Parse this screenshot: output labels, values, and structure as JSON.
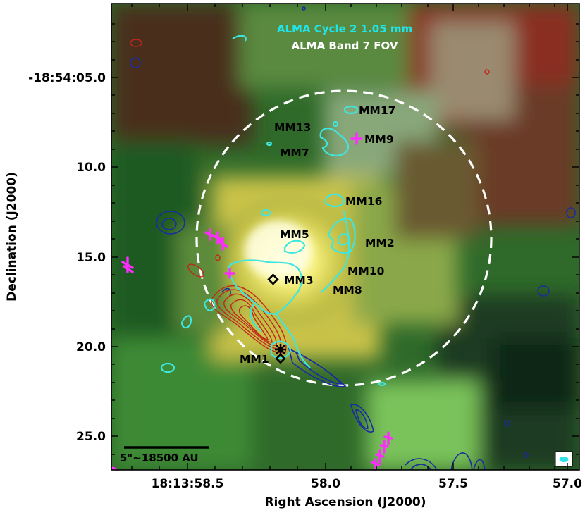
{
  "figure": {
    "legend_line_1": "ALMA Cycle 2 1.05 mm",
    "legend_line_1_color": "#22e3e8",
    "legend_line_2": "ALMA Band 7 FOV",
    "legend_line_2_color": "#ffffff",
    "scale_bar_label": "5\"~18500 AU",
    "x_axis_label": "Right Ascension (J2000)",
    "y_axis_label": "Declination (J2000)",
    "x_ticks": [
      "18:13:58.5",
      "58.0",
      "57.5",
      "57.0"
    ],
    "y_ticks": [
      "-18:54:05.0",
      "10.0",
      "15.0",
      "20.0",
      "25.0"
    ],
    "sources": [
      {
        "name": "MM17"
      },
      {
        "name": "MM13"
      },
      {
        "name": "MM9"
      },
      {
        "name": "MM7"
      },
      {
        "name": "MM16"
      },
      {
        "name": "MM5"
      },
      {
        "name": "MM2"
      },
      {
        "name": "MM10"
      },
      {
        "name": "MM3"
      },
      {
        "name": "MM8"
      },
      {
        "name": "MM1"
      }
    ],
    "colors": {
      "cyan_contours": "#3fe6e0",
      "red_contours": "#c0281c",
      "blue_contours": "#1a2ca0",
      "magenta_markers": "#ff2cff",
      "fov_circle": "#ffffff"
    }
  }
}
